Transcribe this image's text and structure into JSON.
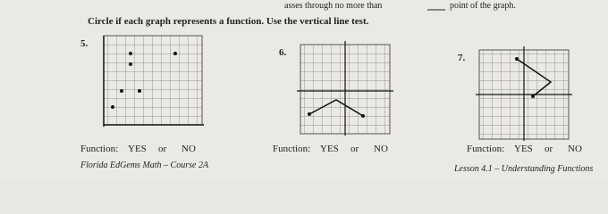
{
  "header": {
    "text_before": "asses through no more than",
    "text_after": "point of the graph."
  },
  "instruction": "Circle if each graph represents a function. Use the vertical line test.",
  "problems": [
    {
      "number": "5.",
      "label": "Function:",
      "yes": "YES",
      "or": "or",
      "no": "NO"
    },
    {
      "number": "6.",
      "label": "Function:",
      "yes": "YES",
      "or": "or",
      "no": "NO"
    },
    {
      "number": "7.",
      "label": "Function:",
      "yes": "YES",
      "or": "or",
      "no": "NO"
    }
  ],
  "footer": {
    "left": "Florida EdGems Math – Course 2A",
    "right": "Lesson 4.1 – Understanding Functions"
  }
}
